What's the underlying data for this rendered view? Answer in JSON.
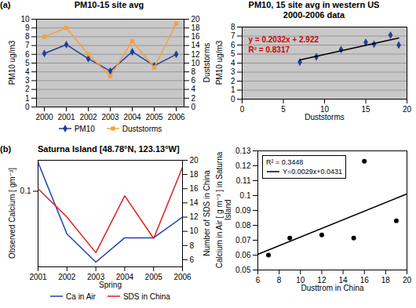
{
  "chart_data": [
    {
      "type": "line",
      "panel": "(a)",
      "title": "PM10-15 site avg",
      "categories": [
        "2000",
        "2001",
        "2002",
        "2003",
        "2004",
        "2005",
        "2006"
      ],
      "ylabel": "PM10 ug/m3",
      "ylim": [
        0,
        10
      ],
      "yticks": [
        0,
        1,
        2,
        3,
        4,
        5,
        6,
        7,
        8,
        9,
        10
      ],
      "y2label": "Duststorms",
      "y2lim": [
        0,
        20
      ],
      "y2ticks": [
        0,
        2,
        4,
        6,
        8,
        10,
        12,
        14,
        16,
        18,
        20
      ],
      "grid": true,
      "legend": "bottom",
      "series": [
        {
          "name": "PM10",
          "color": "#1f3f99",
          "marker": "diamond",
          "values": [
            6.1,
            7.1,
            5.5,
            4.1,
            6.3,
            4.7,
            6.0
          ]
        },
        {
          "name": "Duststorms",
          "color": "#f5a040",
          "marker": "square",
          "axis": "y2",
          "values": [
            16,
            18,
            12,
            7,
            15,
            9,
            19
          ]
        }
      ]
    },
    {
      "type": "scatter",
      "title": "PM10, 15 site avg in western US",
      "subtitle": "2000-2006 data",
      "xlabel": "Duststorms",
      "ylabel": "PM10 ug/m3",
      "xlim": [
        0,
        20
      ],
      "xticks": [
        0,
        5,
        10,
        15,
        20
      ],
      "ylim": [
        0,
        8
      ],
      "yticks": [
        0,
        1,
        2,
        3,
        4,
        5,
        6,
        7,
        8
      ],
      "grid": true,
      "annotations": [
        "y = 0.2032x + 2.922",
        "R² = 0.8317"
      ],
      "series": [
        {
          "type": "scatter",
          "color": "#1f3f99",
          "marker": "diamond",
          "x": [
            7,
            9,
            12,
            15,
            16,
            18,
            19
          ],
          "values": [
            4.1,
            4.7,
            5.5,
            6.3,
            6.1,
            7.1,
            6.0
          ]
        },
        {
          "type": "line",
          "color": "#000000",
          "x": [
            7,
            19
          ],
          "values": [
            4.344,
            6.783
          ]
        }
      ]
    },
    {
      "type": "line",
      "panel": "(b)",
      "title": "Saturna Island [48.78°N, 123.13°W]",
      "x": [
        2001,
        2002,
        2003,
        2004,
        2005,
        2006
      ],
      "xlabel": "Spring",
      "xlim": [
        2001,
        2006
      ],
      "xticks": [
        2001,
        2002,
        2003,
        2004,
        2005,
        2006
      ],
      "ylabel": "Observed Calcium [ gm⁻³]",
      "ylim": [
        0.058,
        0.125
      ],
      "yticks": [
        0.1
      ],
      "log": "y",
      "y2label": "Number of SDS in China",
      "y2lim": [
        5,
        20
      ],
      "y2ticks": [
        6,
        8,
        10,
        12,
        14,
        16,
        18,
        20
      ],
      "legend": "bottom",
      "series": [
        {
          "name": "Ca in Air",
          "color": "#1f3fbf",
          "values": [
            0.123,
            0.0735,
            0.06,
            0.0715,
            0.0715,
            0.083
          ]
        },
        {
          "name": "SDS in China",
          "color": "#e02020",
          "axis": "y2",
          "values": [
            16,
            12,
            7,
            15,
            9,
            19
          ]
        }
      ]
    },
    {
      "type": "scatter",
      "xlabel": "Dusttrom in China",
      "ylabel": "Calcium in Air [ g m⁻³ ] in Saturna Island",
      "xlim": [
        6,
        20
      ],
      "xticks": [
        6,
        8,
        10,
        12,
        14,
        16,
        18,
        20
      ],
      "ylim": [
        0.05,
        0.13
      ],
      "yticks": [
        0.05,
        0.06,
        0.07,
        0.08,
        0.09,
        0.1,
        0.11,
        0.12,
        0.13
      ],
      "legend": "upper left",
      "annotations": [
        "R² = 0.3448"
      ],
      "series": [
        {
          "type": "scatter",
          "color": "#000000",
          "marker": "circle",
          "x": [
            7,
            9,
            12,
            15,
            16,
            19
          ],
          "values": [
            0.06,
            0.0715,
            0.0735,
            0.0715,
            0.123,
            0.083
          ]
        },
        {
          "type": "line",
          "name": "Y=0.0029x+0.0431",
          "color": "#000000",
          "x": [
            6,
            20
          ],
          "values": [
            0.0605,
            0.1011
          ]
        }
      ]
    }
  ]
}
